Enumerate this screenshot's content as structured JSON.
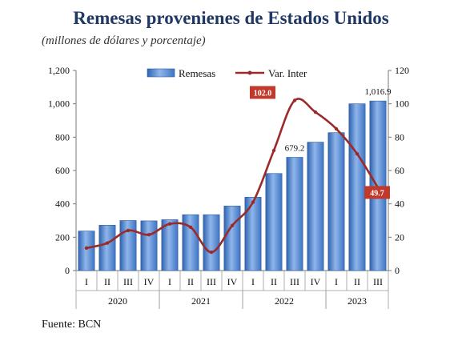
{
  "title": "Remesas provenienes de Estados Unidos",
  "subtitle": "(millones de dólares y porcentaje)",
  "source": "Fuente: BCN",
  "colors": {
    "bar": "#5b8fd6",
    "bar_dark": "#2f63b0",
    "line": "#9b2a2a",
    "callout": "#c0392b"
  },
  "chart_data": {
    "type": "bar",
    "categories": [
      "I",
      "II",
      "III",
      "IV",
      "I",
      "II",
      "III",
      "IV",
      "I",
      "II",
      "III",
      "IV",
      "I",
      "II",
      "III"
    ],
    "years": [
      {
        "label": "2020",
        "count": 4
      },
      {
        "label": "2021",
        "count": 4
      },
      {
        "label": "2022",
        "count": 4
      },
      {
        "label": "2023",
        "count": 3
      }
    ],
    "series": [
      {
        "name": "Remesas",
        "type": "bar",
        "axis": "left",
        "values": [
          237,
          272,
          300,
          298,
          305,
          335,
          335,
          387,
          440,
          582,
          679.2,
          770,
          827,
          1000,
          1016.9
        ]
      },
      {
        "name": "Var. Inter",
        "type": "line",
        "axis": "right",
        "values": [
          13.5,
          16.5,
          24,
          21.5,
          28,
          26,
          11,
          27,
          41,
          72,
          102,
          95,
          85,
          70,
          49.7
        ]
      }
    ],
    "y_left": {
      "min": 0,
      "max": 1200,
      "ticks": [
        "0",
        "200",
        "400",
        "600",
        "800",
        "1,000",
        "1,200"
      ]
    },
    "y_right": {
      "min": 0,
      "max": 120,
      "ticks": [
        "0",
        "20",
        "40",
        "60",
        "80",
        "100",
        "120"
      ]
    },
    "data_labels": [
      {
        "series": 0,
        "index": 10,
        "text": "679.2",
        "style": "plain"
      },
      {
        "series": 0,
        "index": 14,
        "text": "1,016.9",
        "style": "plain"
      },
      {
        "series": 1,
        "index": 10,
        "text": "102.0",
        "style": "callout"
      },
      {
        "series": 1,
        "index": 14,
        "text": "49.7",
        "style": "callout"
      }
    ],
    "legend_position": "top-center",
    "grid": false
  }
}
